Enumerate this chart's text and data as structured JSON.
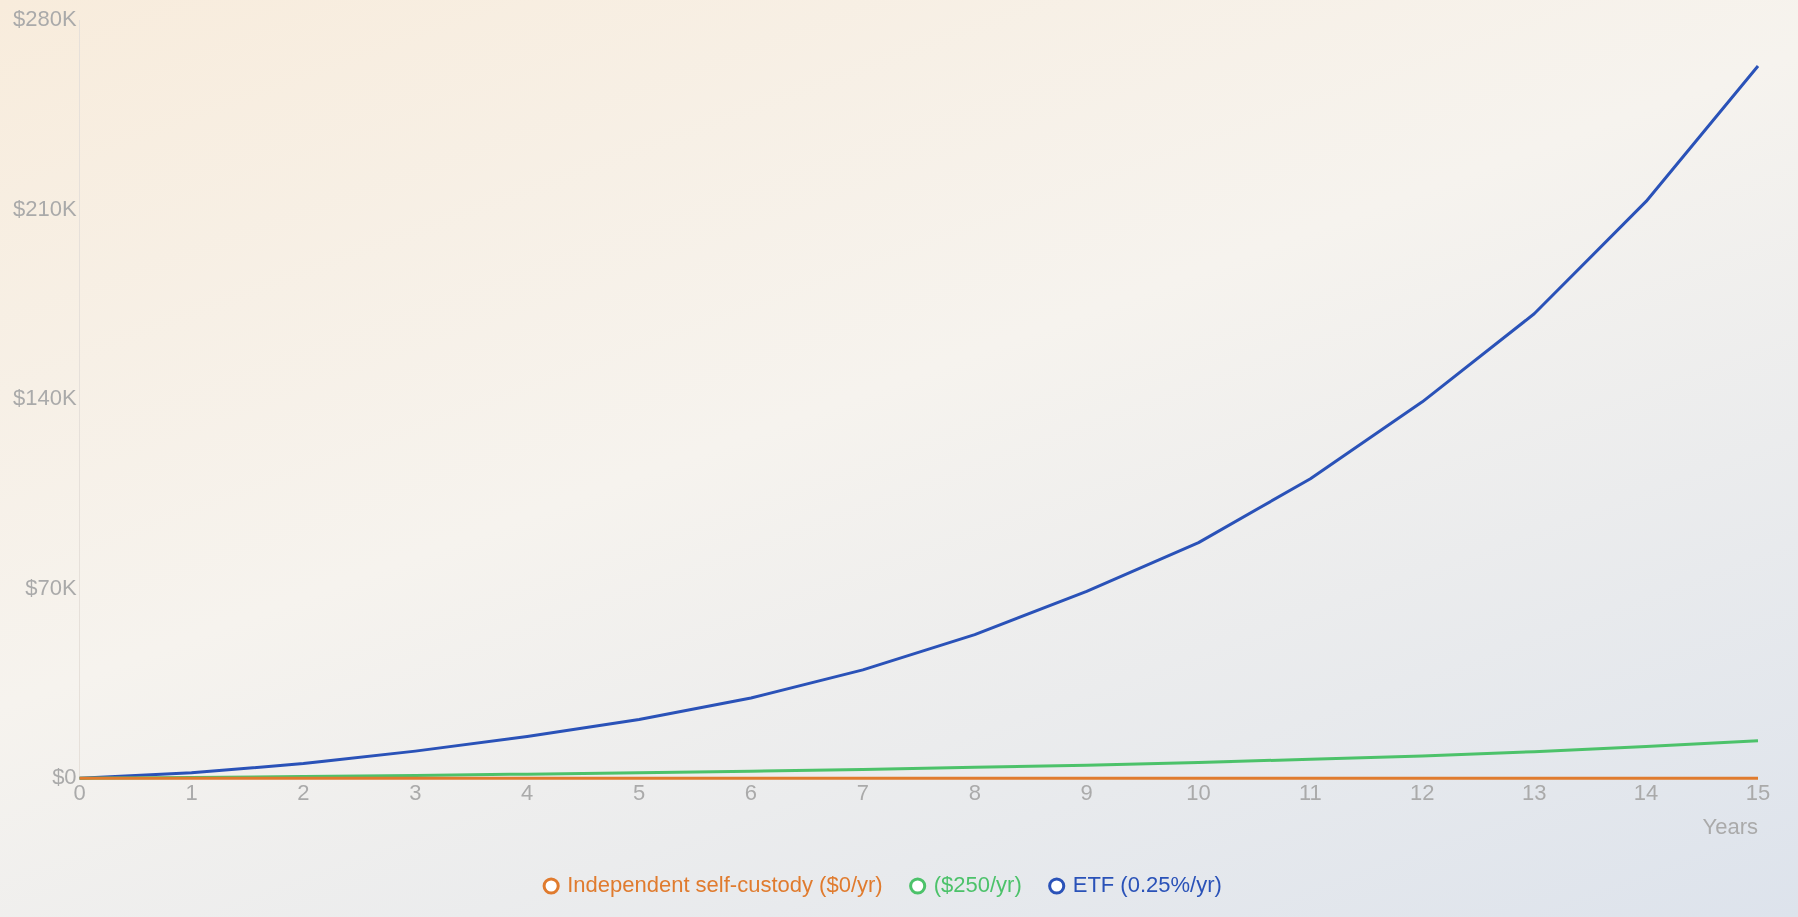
{
  "chart_data": {
    "type": "line",
    "xlabel": "Years",
    "x": [
      0,
      1,
      2,
      3,
      4,
      5,
      6,
      7,
      8,
      9,
      10,
      11,
      12,
      13,
      14,
      15
    ],
    "series": [
      {
        "name": "Independent self-custody ($0/yr)",
        "color": "#e07b2e",
        "values": [
          0,
          0,
          0,
          0,
          0,
          0,
          0,
          0,
          0,
          0,
          0,
          0,
          0,
          0,
          0,
          0
        ]
      },
      {
        "name": "($250/yr)",
        "color": "#4cc26a",
        "values": [
          0,
          0.3,
          0.6,
          1,
          1.5,
          2,
          2.6,
          3.2,
          4,
          4.8,
          5.8,
          7,
          8.2,
          9.8,
          11.7,
          13.8
        ]
      },
      {
        "name": "ETF (0.25%/yr)",
        "color": "#2a52b8",
        "values": [
          0,
          2,
          5.4,
          10,
          15.4,
          21.7,
          29.6,
          40,
          53,
          69,
          87,
          110.6,
          139,
          171.5,
          213,
          263
        ]
      }
    ],
    "xlim": [
      0,
      15
    ],
    "xticks": [
      0,
      1,
      2,
      3,
      4,
      5,
      6,
      7,
      8,
      9,
      10,
      11,
      12,
      13,
      14,
      15
    ],
    "ylim": [
      0,
      280
    ],
    "yticks": [
      {
        "value": 0,
        "label": "$0"
      },
      {
        "value": 70,
        "label": "$70K"
      },
      {
        "value": 140,
        "label": "$140K"
      },
      {
        "value": 210,
        "label": "$210K"
      },
      {
        "value": 280,
        "label": "$280K"
      }
    ],
    "grid": false,
    "legend": "bottom",
    "marker": "none",
    "line_style": "solid"
  }
}
